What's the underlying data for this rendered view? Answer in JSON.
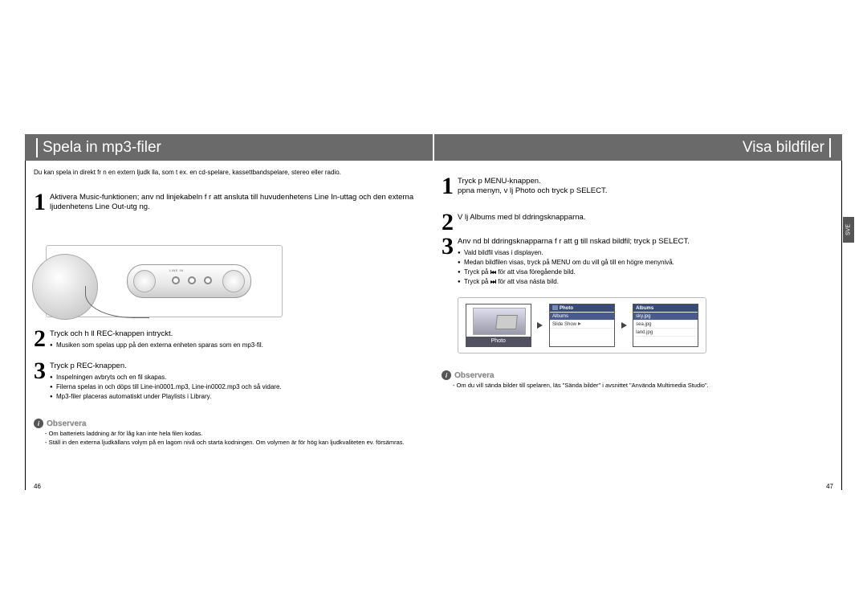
{
  "left": {
    "header_title": "Spela in mp3-filer",
    "intro": "Du kan spela in direkt fr n en extern ljudk lla, som t ex. en cd-spelare, kassettbandspelare, stereo eller radio.",
    "step1": {
      "text": "Aktivera Music-funktionen; anv nd linjekabeln f r att ansluta till huvudenhetens Line In-uttag och den externa ljudenhetens Line Out-utg ng."
    },
    "step2": {
      "text": "Tryck och h ll REC-knappen intryckt.",
      "bullets": [
        "Musiken som spelas upp på den externa enheten sparas som en mp3-fil."
      ]
    },
    "step3": {
      "text": "Tryck p  REC-knappen.",
      "bullets": [
        "Inspelningen avbryts och en fil skapas.",
        "Filerna spelas in och döps till Line-in0001.mp3, Line-in0002.mp3 och så vidare.",
        "Mp3-filer placeras automatiskt under Playlists i Library."
      ]
    },
    "notice": {
      "label": "Observera",
      "lines": [
        "- Om batteriets laddning är för låg kan inte hela filen kodas.",
        "- Ställ in den externa ljudkällans volym på en lagom nivå och starta kodningen. Om volymen är för hög kan ljudkvaliteten ev. försämras."
      ]
    },
    "device": {
      "jack_labels": [
        "LINE IN",
        "",
        ""
      ]
    },
    "page_num": "46"
  },
  "right": {
    "header_title": "Visa bildfiler",
    "sve_tab": "SVE",
    "step1": {
      "line1": "Tryck p  MENU-knappen.",
      "line2": "ppna menyn, v lj Photo och tryck p  SELECT."
    },
    "step2": {
      "text": "V lj Albums med bl ddringsknapparna."
    },
    "step3": {
      "text": "Anv nd bl ddringsknapparna f r att g  till  nskad bildfil; tryck p  SELECT.",
      "bullets": [
        "Vald bildfil visas i displayen.",
        "Medan bildfilen visas, tryck på MENU om du vill gå till en högre menynivå.",
        "Tryck på {{REW}} för att visa föregående bild.",
        "Tryck på {{FWD}} för att visa nästa bild."
      ]
    },
    "screens": {
      "s1_label": "Photo",
      "s2": {
        "title": "Photo",
        "rows": [
          "Albums",
          "Slide Show"
        ],
        "highlight": 0,
        "title_icon": "photo-icon"
      },
      "s3": {
        "title": "Albums",
        "rows": [
          "sky.jpg",
          "sea.jpg",
          "land.jpg"
        ],
        "highlight": 0
      }
    },
    "notice": {
      "label": "Observera",
      "lines": [
        "- Om du vill sända bilder till spelaren, läs \"Sända bilder\" i avsnittet \"Använda Multimedia Studio\"."
      ]
    },
    "page_num": "47"
  },
  "colors": {
    "header_bg": "#6a6a6a",
    "header_text": "#ffffff",
    "body_text": "#000000",
    "notice_text": "#888888",
    "screen_highlight": "#4a5a8a",
    "screen_titlebar": "#3a4a78",
    "sve_bg": "#555555"
  }
}
